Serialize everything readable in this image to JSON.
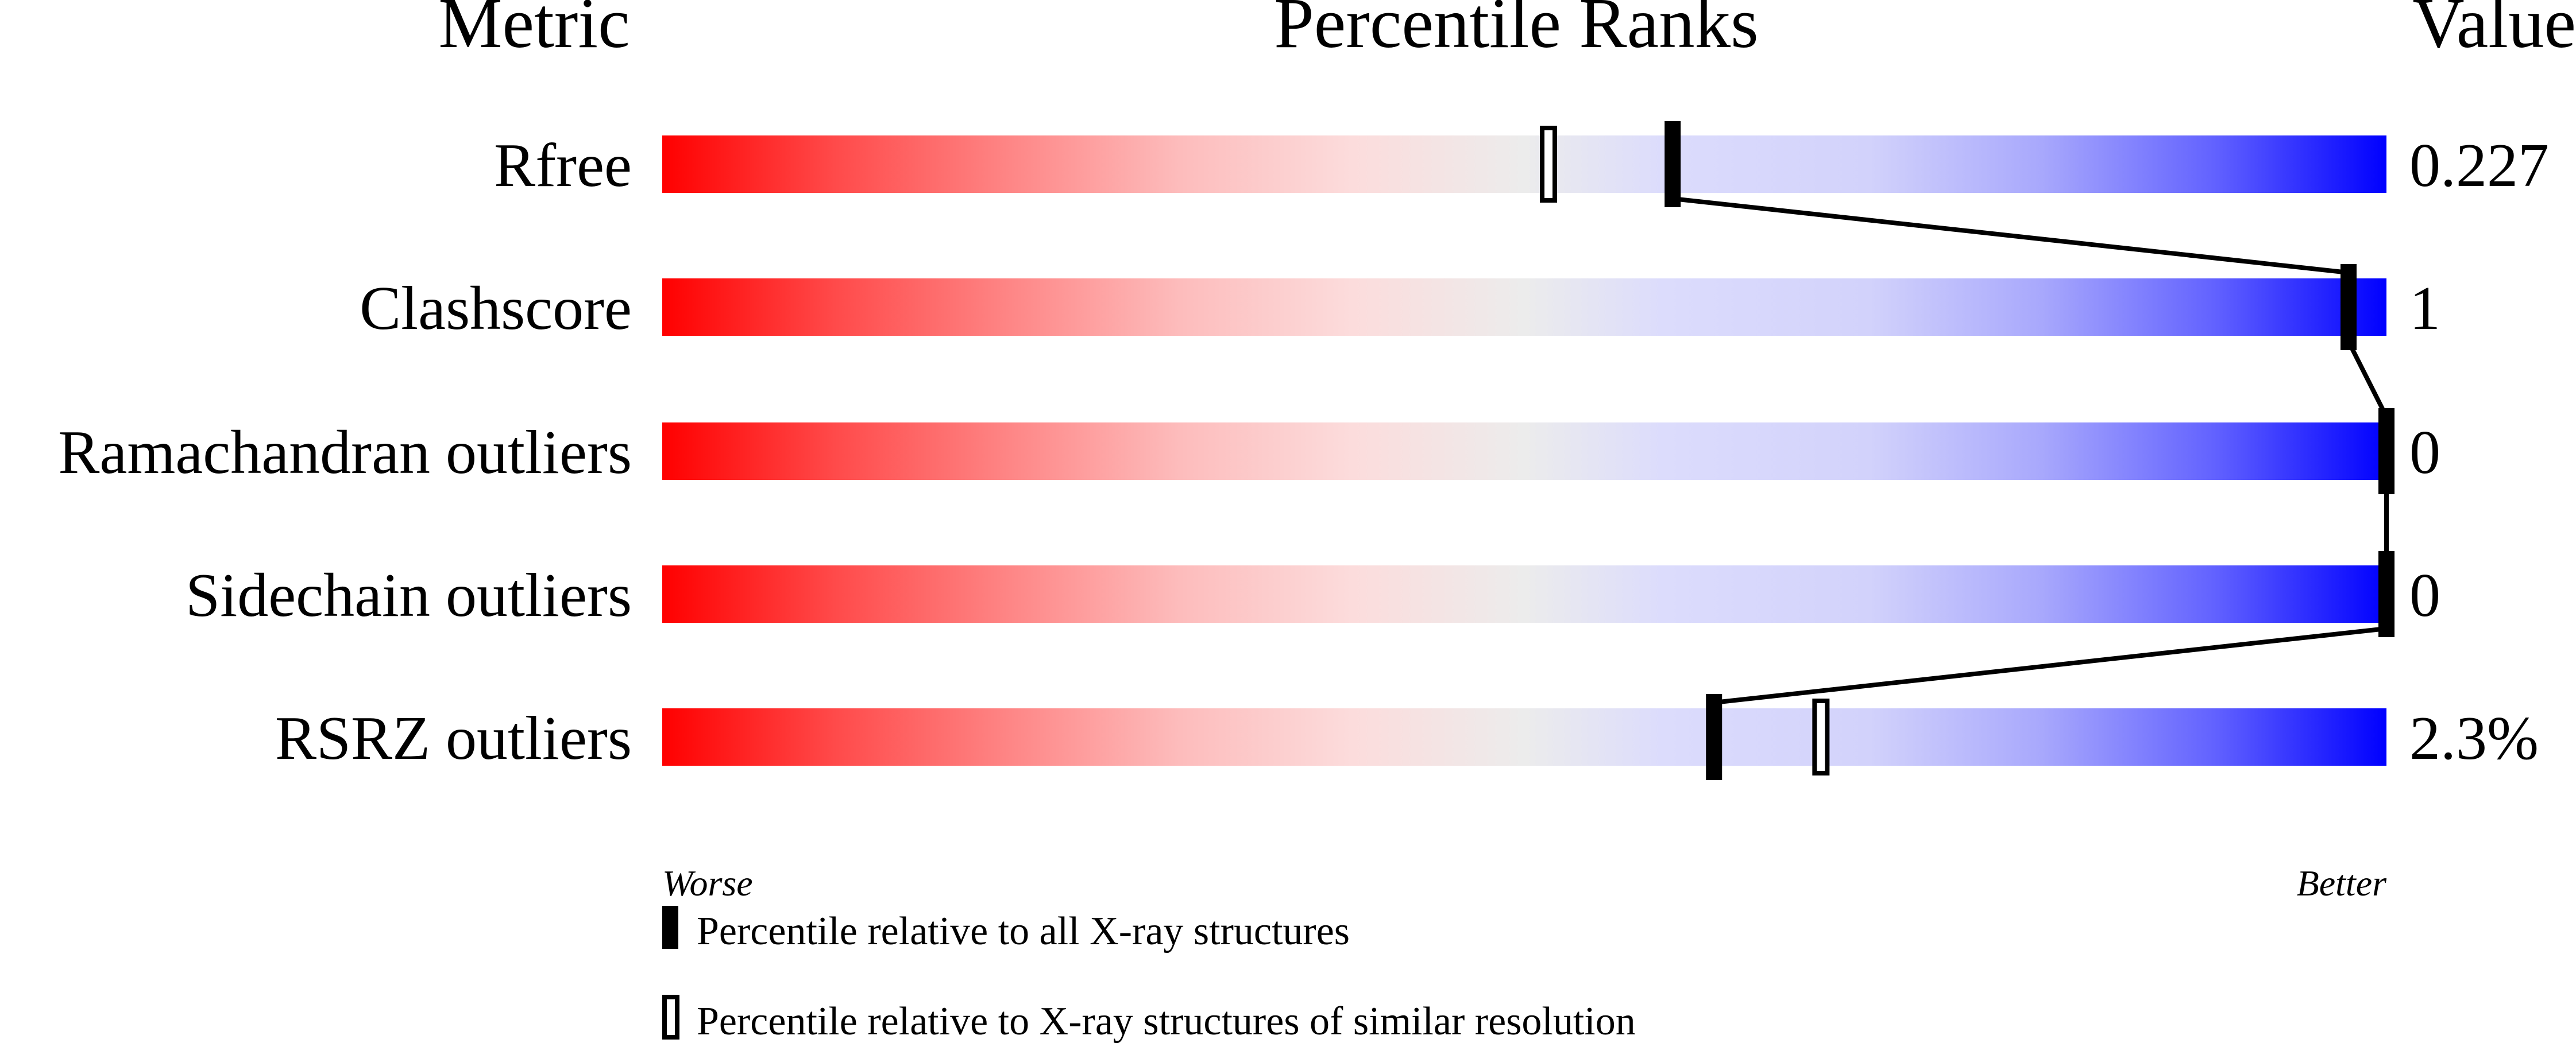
{
  "chart_data": {
    "type": "percentile-slider",
    "headers": {
      "metric": "Metric",
      "ranks": "Percentile Ranks",
      "value": "Value"
    },
    "xlim": [
      0,
      100
    ],
    "rows": [
      {
        "metric": "Rfree",
        "value": "0.227",
        "percentile_all": 58.6,
        "percentile_similar": 51.4
      },
      {
        "metric": "Clashscore",
        "value": "1",
        "percentile_all": 97.8,
        "percentile_similar": null
      },
      {
        "metric": "Ramachandran outliers",
        "value": "0",
        "percentile_all": 100,
        "percentile_similar": null
      },
      {
        "metric": "Sidechain outliers",
        "value": "0",
        "percentile_all": 100,
        "percentile_similar": null
      },
      {
        "metric": "RSRZ outliers",
        "value": "2.3%",
        "percentile_all": 61.0,
        "percentile_similar": 67.2
      }
    ],
    "axis_left_label": "Worse",
    "axis_right_label": "Better",
    "legend": {
      "all": "Percentile relative to all X-ray structures",
      "similar": "Percentile relative to X-ray structures of similar resolution"
    },
    "colors": {
      "worse": "#ff0000",
      "middle": "#ececec",
      "better": "#0000ff",
      "marker": "#000000"
    }
  }
}
